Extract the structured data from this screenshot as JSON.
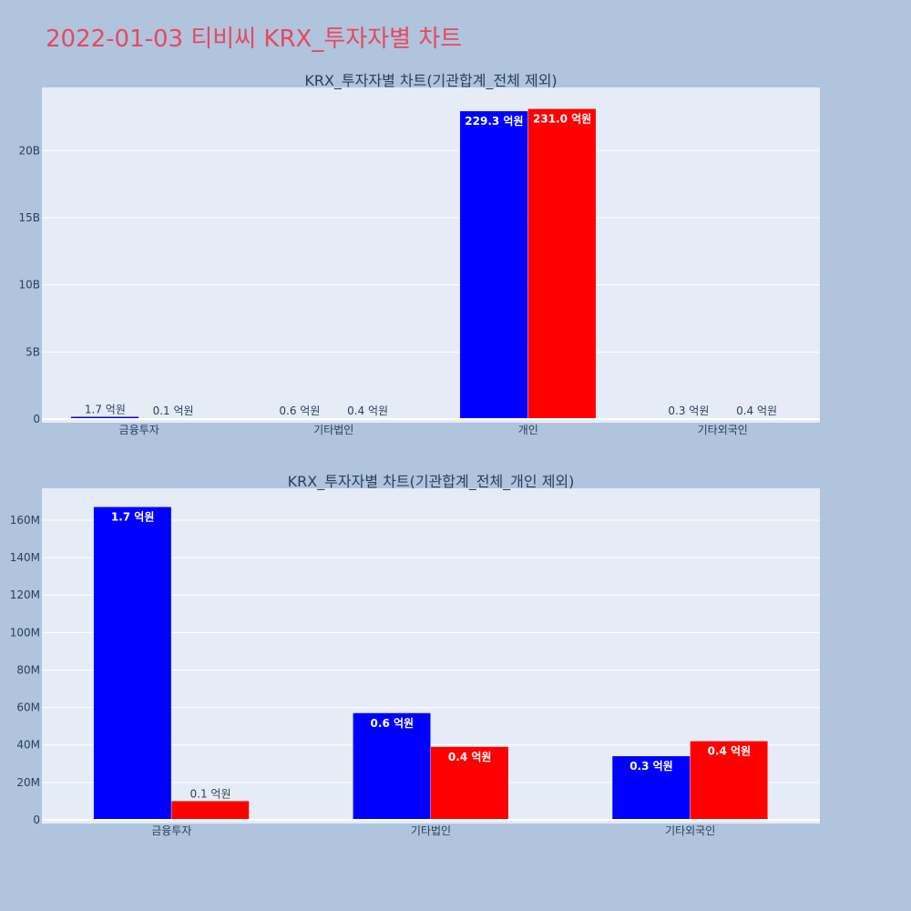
{
  "title": "2022-01-03 티비씨 KRX_투자자별 차트",
  "colors": {
    "buy": "#0000ff",
    "sell": "#ff0000",
    "plot_bg": "#e5ecf6",
    "page_bg": "#b0c4de",
    "title": "#e8485f"
  },
  "chart_data": [
    {
      "type": "bar",
      "title": "KRX_투자자별 차트(기관합계_전체 제외)",
      "categories": [
        "금융투자",
        "기타법인",
        "개인",
        "기타외국인"
      ],
      "ylim": [
        0,
        24700000000
      ],
      "yticks": [
        {
          "value": 0,
          "label": "0"
        },
        {
          "value": 5000000000,
          "label": "5B"
        },
        {
          "value": 10000000000,
          "label": "10B"
        },
        {
          "value": 15000000000,
          "label": "15B"
        },
        {
          "value": 20000000000,
          "label": "20B"
        }
      ],
      "grid": true,
      "series": [
        {
          "values": [
            167000000,
            57000000,
            22930000000,
            34000000
          ],
          "labels": [
            "1.7 억원",
            "0.6 억원",
            "229.3 억원",
            "0.3 억원"
          ]
        },
        {
          "values": [
            10000000,
            39000000,
            23100000000,
            42000000
          ],
          "labels": [
            "0.1 억원",
            "0.4 억원",
            "231.0 억원",
            "0.4 억원"
          ]
        }
      ]
    },
    {
      "type": "bar",
      "title": "KRX_투자자별 차트(기관합계_전체_개인 제외)",
      "categories": [
        "금융투자",
        "기타법인",
        "기타외국인"
      ],
      "ylim": [
        0,
        177000000
      ],
      "yticks": [
        {
          "value": 0,
          "label": "0"
        },
        {
          "value": 20000000,
          "label": "20M"
        },
        {
          "value": 40000000,
          "label": "40M"
        },
        {
          "value": 60000000,
          "label": "60M"
        },
        {
          "value": 80000000,
          "label": "80M"
        },
        {
          "value": 100000000,
          "label": "100M"
        },
        {
          "value": 120000000,
          "label": "120M"
        },
        {
          "value": 140000000,
          "label": "140M"
        },
        {
          "value": 160000000,
          "label": "160M"
        }
      ],
      "grid": true,
      "series": [
        {
          "values": [
            167000000,
            57000000,
            34000000
          ],
          "labels": [
            "1.7 억원",
            "0.6 억원",
            "0.3 억원"
          ]
        },
        {
          "values": [
            10000000,
            39000000,
            42000000
          ],
          "labels": [
            "0.1 억원",
            "0.4 억원",
            "0.4 억원"
          ]
        }
      ]
    }
  ]
}
